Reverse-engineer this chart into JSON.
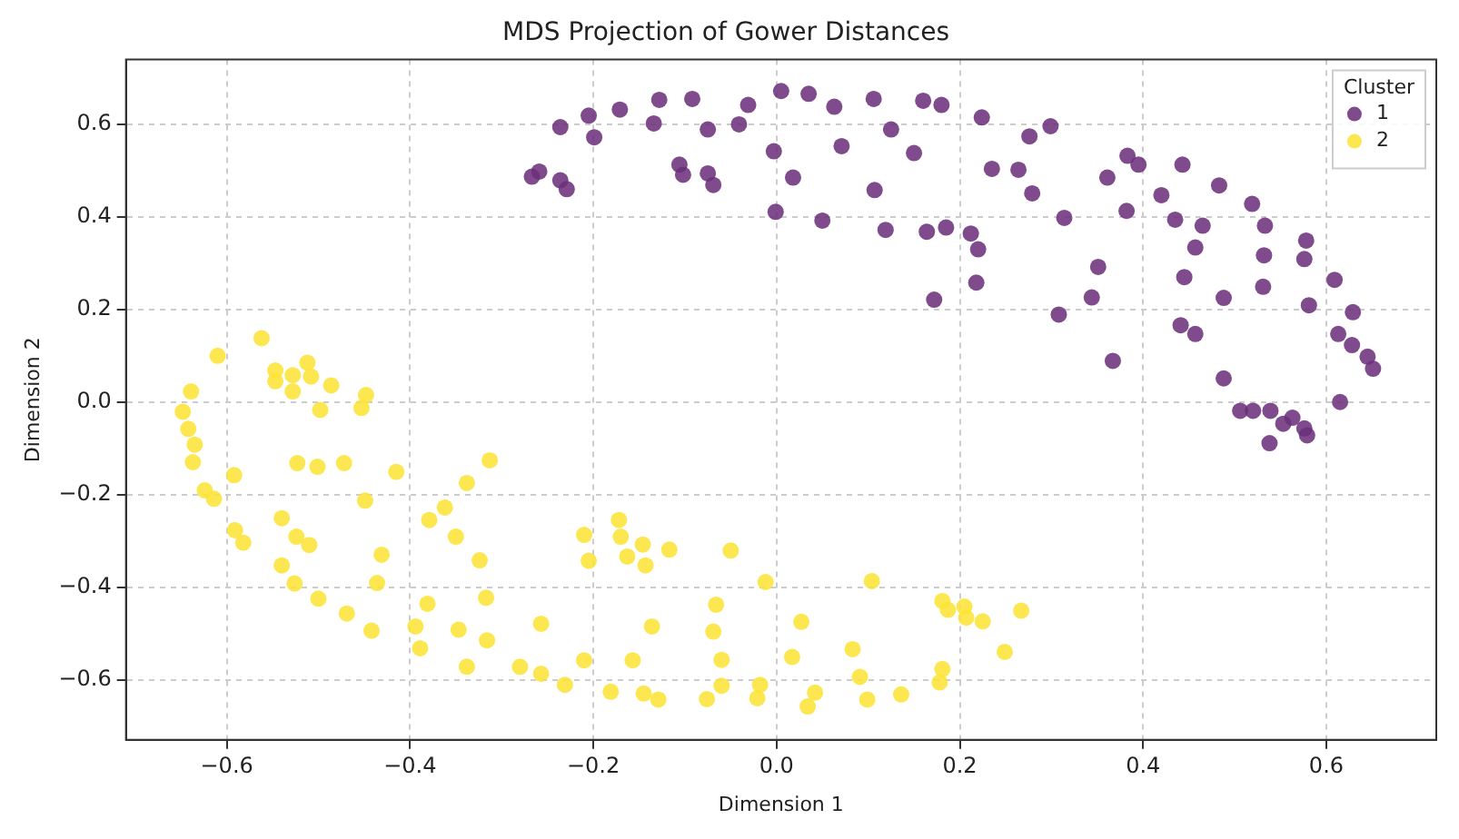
{
  "chart_data": {
    "type": "scatter",
    "title": "MDS Projection of Gower Distances",
    "xlabel": "Dimension 1",
    "ylabel": "Dimension 2",
    "legend_title": "Cluster",
    "legend": "top right",
    "grid": true,
    "marker": "circle",
    "xlim": [
      -0.71,
      0.72
    ],
    "ylim": [
      -0.73,
      0.74
    ],
    "xticks": [
      {
        "value": -0.6,
        "label": "−0.6"
      },
      {
        "value": -0.4,
        "label": "−0.4"
      },
      {
        "value": -0.2,
        "label": "−0.2"
      },
      {
        "value": 0,
        "label": "0.0"
      },
      {
        "value": 0.2,
        "label": "0.2"
      },
      {
        "value": 0.4,
        "label": "0.4"
      },
      {
        "value": 0.6,
        "label": "0.6"
      }
    ],
    "yticks": [
      {
        "value": -0.6,
        "label": "−0.6"
      },
      {
        "value": -0.4,
        "label": "−0.4"
      },
      {
        "value": -0.2,
        "label": "−0.2"
      },
      {
        "value": 0,
        "label": "0.0"
      },
      {
        "value": 0.2,
        "label": "0.2"
      },
      {
        "value": 0.4,
        "label": "0.4"
      },
      {
        "value": 0.6,
        "label": "0.6"
      }
    ],
    "series": [
      {
        "name": "1",
        "color": "#6b2f7a",
        "x": [
          -0.267,
          -0.259,
          -0.236,
          -0.229,
          -0.236,
          -0.205,
          -0.199,
          -0.171,
          -0.134,
          -0.128,
          -0.092,
          -0.075,
          -0.106,
          -0.102,
          -0.075,
          -0.069,
          -0.041,
          -0.031,
          -0.003,
          -0.001,
          0.005,
          0.018,
          0.035,
          0.05,
          0.063,
          0.071,
          0.106,
          0.107,
          0.119,
          0.125,
          0.15,
          0.16,
          0.172,
          0.164,
          0.18,
          0.185,
          0.212,
          0.22,
          0.218,
          0.224,
          0.235,
          0.264,
          0.276,
          0.279,
          0.299,
          0.308,
          0.314,
          0.344,
          0.351,
          0.361,
          0.367,
          0.383,
          0.382,
          0.395,
          0.42,
          0.435,
          0.443,
          0.445,
          0.441,
          0.457,
          0.457,
          0.465,
          0.483,
          0.488,
          0.488,
          0.506,
          0.519,
          0.52,
          0.531,
          0.532,
          0.533,
          0.538,
          0.539,
          0.553,
          0.563,
          0.576,
          0.579,
          0.576,
          0.578,
          0.581,
          0.609,
          0.613,
          0.615,
          0.628,
          0.629,
          0.645,
          0.651
        ],
        "values": [
          0.487,
          0.498,
          0.479,
          0.46,
          0.594,
          0.619,
          0.572,
          0.632,
          0.602,
          0.653,
          0.655,
          0.589,
          0.513,
          0.491,
          0.494,
          0.469,
          0.6,
          0.642,
          0.542,
          0.411,
          0.672,
          0.485,
          0.666,
          0.392,
          0.638,
          0.553,
          0.655,
          0.458,
          0.372,
          0.589,
          0.538,
          0.651,
          0.221,
          0.368,
          0.642,
          0.377,
          0.364,
          0.33,
          0.258,
          0.615,
          0.504,
          0.502,
          0.574,
          0.451,
          0.596,
          0.189,
          0.398,
          0.226,
          0.292,
          0.485,
          0.089,
          0.532,
          0.413,
          0.513,
          0.447,
          0.394,
          0.513,
          0.27,
          0.166,
          0.147,
          0.334,
          0.381,
          0.468,
          0.051,
          0.225,
          -0.019,
          0.428,
          -0.019,
          0.249,
          0.317,
          0.381,
          -0.089,
          -0.019,
          -0.047,
          -0.034,
          -0.057,
          -0.072,
          0.309,
          0.349,
          0.209,
          0.264,
          0.147,
          0.0,
          0.123,
          0.194,
          0.098,
          0.072
        ]
      },
      {
        "name": "2",
        "color": "#fde335",
        "x": [
          -0.648,
          -0.642,
          -0.639,
          -0.635,
          -0.637,
          -0.624,
          -0.614,
          -0.61,
          -0.592,
          -0.591,
          -0.582,
          -0.562,
          -0.547,
          -0.547,
          -0.54,
          -0.528,
          -0.528,
          -0.512,
          -0.508,
          -0.498,
          -0.486,
          -0.523,
          -0.501,
          -0.472,
          -0.524,
          -0.51,
          -0.54,
          -0.526,
          -0.5,
          -0.469,
          -0.453,
          -0.448,
          -0.449,
          -0.431,
          -0.436,
          -0.442,
          -0.415,
          -0.394,
          -0.389,
          -0.381,
          -0.362,
          -0.379,
          -0.35,
          -0.347,
          -0.338,
          -0.324,
          -0.313,
          -0.317,
          -0.316,
          -0.338,
          -0.28,
          -0.257,
          -0.257,
          -0.231,
          -0.21,
          -0.205,
          -0.21,
          -0.172,
          -0.17,
          -0.163,
          -0.146,
          -0.143,
          -0.157,
          -0.181,
          -0.145,
          -0.129,
          -0.136,
          -0.117,
          -0.066,
          -0.069,
          -0.06,
          -0.06,
          -0.076,
          -0.05,
          -0.021,
          -0.018,
          -0.012,
          0.017,
          0.027,
          0.034,
          0.042,
          0.083,
          0.091,
          0.099,
          0.104,
          0.136,
          0.181,
          0.187,
          0.205,
          0.207,
          0.225,
          0.267,
          0.249,
          0.181,
          0.178
        ],
        "values": [
          -0.021,
          -0.058,
          0.023,
          -0.092,
          -0.13,
          -0.191,
          -0.209,
          0.1,
          -0.158,
          -0.277,
          -0.304,
          0.138,
          0.068,
          0.045,
          -0.251,
          0.058,
          0.023,
          0.085,
          0.055,
          -0.017,
          0.036,
          -0.132,
          -0.14,
          -0.132,
          -0.291,
          -0.309,
          -0.353,
          -0.392,
          -0.425,
          -0.457,
          -0.013,
          0.015,
          -0.213,
          -0.33,
          -0.391,
          -0.494,
          -0.151,
          -0.485,
          -0.532,
          -0.436,
          -0.228,
          -0.255,
          -0.291,
          -0.492,
          -0.175,
          -0.342,
          -0.126,
          -0.423,
          -0.515,
          -0.572,
          -0.572,
          -0.479,
          -0.587,
          -0.611,
          -0.287,
          -0.343,
          -0.558,
          -0.255,
          -0.291,
          -0.334,
          -0.308,
          -0.353,
          -0.558,
          -0.626,
          -0.63,
          -0.643,
          -0.485,
          -0.319,
          -0.438,
          -0.496,
          -0.557,
          -0.613,
          -0.642,
          -0.321,
          -0.64,
          -0.611,
          -0.389,
          -0.551,
          -0.475,
          -0.658,
          -0.628,
          -0.534,
          -0.594,
          -0.643,
          -0.387,
          -0.632,
          -0.43,
          -0.449,
          -0.442,
          -0.466,
          -0.474,
          -0.451,
          -0.54,
          -0.577,
          -0.606
        ]
      }
    ]
  }
}
